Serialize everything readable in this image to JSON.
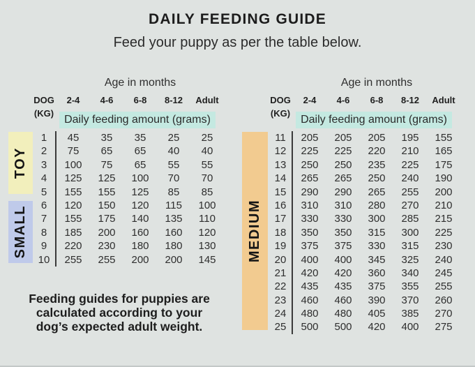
{
  "title": "DAILY FEEDING GUIDE",
  "subtitle": "Feed your puppy as per the table below.",
  "note_lines": [
    "Feeding guides for puppies are",
    "calculated according to your",
    "dog’s expected adult weight."
  ],
  "colors": {
    "background": "#dfe3e1",
    "highlight_band": "#c4e9e1",
    "toy": "#f2efbc",
    "small": "#bfcaea",
    "medium": "#f2cb90"
  },
  "tables": [
    {
      "age_header": "Age in months",
      "dog_label": "DOG",
      "kg_label": "(KG)",
      "columns": [
        "2-4",
        "4-6",
        "6-8",
        "8-12",
        "Adult"
      ],
      "band_label": "Daily feeding amount (grams)",
      "groups": [
        {
          "name": "TOY",
          "color_key": "toy",
          "rows": [
            {
              "kg": "1",
              "values": [
                "45",
                "35",
                "35",
                "25",
                "25"
              ]
            },
            {
              "kg": "2",
              "values": [
                "75",
                "65",
                "65",
                "40",
                "40"
              ]
            },
            {
              "kg": "3",
              "values": [
                "100",
                "75",
                "65",
                "55",
                "55"
              ]
            },
            {
              "kg": "4",
              "values": [
                "125",
                "125",
                "100",
                "70",
                "70"
              ]
            },
            {
              "kg": "5",
              "values": [
                "155",
                "155",
                "125",
                "85",
                "85"
              ]
            }
          ]
        },
        {
          "name": "SMALL",
          "color_key": "small",
          "rows": [
            {
              "kg": "6",
              "values": [
                "120",
                "150",
                "120",
                "115",
                "100"
              ]
            },
            {
              "kg": "7",
              "values": [
                "155",
                "175",
                "140",
                "135",
                "110"
              ]
            },
            {
              "kg": "8",
              "values": [
                "185",
                "200",
                "160",
                "160",
                "120"
              ]
            },
            {
              "kg": "9",
              "values": [
                "220",
                "230",
                "180",
                "180",
                "130"
              ]
            },
            {
              "kg": "10",
              "values": [
                "255",
                "255",
                "200",
                "200",
                "145"
              ]
            }
          ]
        }
      ]
    },
    {
      "age_header": "Age in months",
      "dog_label": "DOG",
      "kg_label": "(KG)",
      "columns": [
        "2-4",
        "4-6",
        "6-8",
        "8-12",
        "Adult"
      ],
      "band_label": "Daily feeding amount (grams)",
      "groups": [
        {
          "name": "MEDIUM",
          "color_key": "medium",
          "rows": [
            {
              "kg": "11",
              "values": [
                "205",
                "205",
                "205",
                "195",
                "155"
              ]
            },
            {
              "kg": "12",
              "values": [
                "225",
                "225",
                "220",
                "210",
                "165"
              ]
            },
            {
              "kg": "13",
              "values": [
                "250",
                "250",
                "235",
                "225",
                "175"
              ]
            },
            {
              "kg": "14",
              "values": [
                "265",
                "265",
                "250",
                "240",
                "190"
              ]
            },
            {
              "kg": "15",
              "values": [
                "290",
                "290",
                "265",
                "255",
                "200"
              ]
            },
            {
              "kg": "16",
              "values": [
                "310",
                "310",
                "280",
                "270",
                "210"
              ]
            },
            {
              "kg": "17",
              "values": [
                "330",
                "330",
                "300",
                "285",
                "215"
              ]
            },
            {
              "kg": "18",
              "values": [
                "350",
                "350",
                "315",
                "300",
                "225"
              ]
            },
            {
              "kg": "19",
              "values": [
                "375",
                "375",
                "330",
                "315",
                "230"
              ]
            },
            {
              "kg": "20",
              "values": [
                "400",
                "400",
                "345",
                "325",
                "240"
              ]
            },
            {
              "kg": "21",
              "values": [
                "420",
                "420",
                "360",
                "340",
                "245"
              ]
            },
            {
              "kg": "22",
              "values": [
                "435",
                "435",
                "375",
                "355",
                "255"
              ]
            },
            {
              "kg": "23",
              "values": [
                "460",
                "460",
                "390",
                "370",
                "260"
              ]
            },
            {
              "kg": "24",
              "values": [
                "480",
                "480",
                "405",
                "385",
                "270"
              ]
            },
            {
              "kg": "25",
              "values": [
                "500",
                "500",
                "420",
                "400",
                "275"
              ]
            }
          ]
        }
      ]
    }
  ]
}
